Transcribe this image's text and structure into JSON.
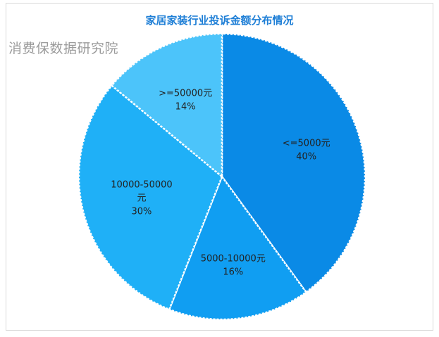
{
  "watermark": "消费保数据研究院",
  "chart_data": {
    "type": "pie",
    "title": "家居家装行业投诉金额分布情况",
    "slices": [
      {
        "label_lines": [
          "<=5000元"
        ],
        "percent_label": "40%",
        "value": 40,
        "color": "#0a8ae6"
      },
      {
        "label_lines": [
          "5000-10000元"
        ],
        "percent_label": "16%",
        "value": 16,
        "color": "#109ef2"
      },
      {
        "label_lines": [
          "10000-50000",
          "元"
        ],
        "percent_label": "30%",
        "value": 30,
        "color": "#1fb0f7"
      },
      {
        "label_lines": [
          ">=50000元"
        ],
        "percent_label": "14%",
        "value": 14,
        "color": "#4cc4fa"
      }
    ],
    "start_angle_deg": 0,
    "direction": "clockwise",
    "legend": "none"
  }
}
